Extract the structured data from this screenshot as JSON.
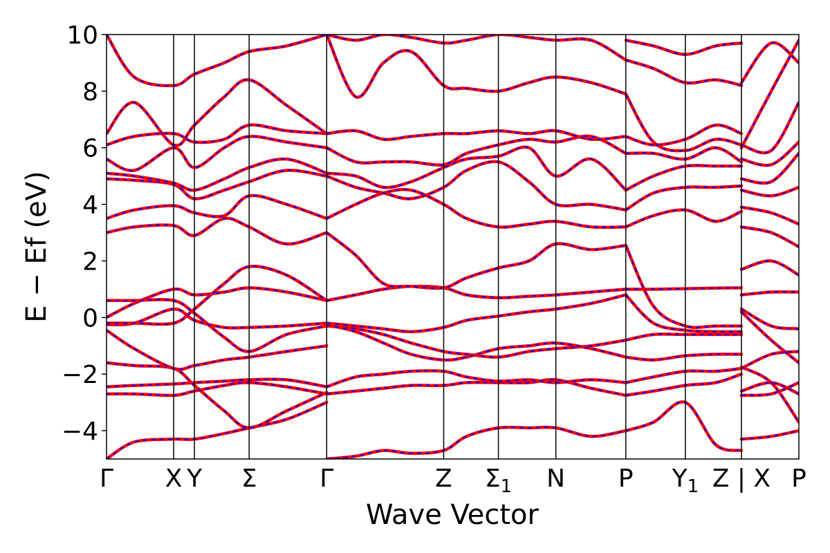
{
  "chart_data": {
    "type": "line",
    "xlabel": "Wave Vector",
    "ylabel": "E − Ef (eV)",
    "ylim": [
      -5,
      10
    ],
    "yticks": [
      -4,
      -2,
      0,
      2,
      4,
      6,
      8,
      10
    ],
    "ytick_labels": [
      "−4",
      "−2",
      "0",
      "2",
      "4",
      "6",
      "8",
      "10"
    ],
    "xlim": [
      0,
      1
    ],
    "kpoints": [
      {
        "x": 0.0,
        "main": "Γ",
        "sub": ""
      },
      {
        "x": 0.097,
        "main": "X",
        "sub": ""
      },
      {
        "x": 0.127,
        "main": "Y",
        "sub": ""
      },
      {
        "x": 0.206,
        "main": "Σ",
        "sub": ""
      },
      {
        "x": 0.318,
        "main": "Γ",
        "sub": ""
      },
      {
        "x": 0.487,
        "main": "Z",
        "sub": ""
      },
      {
        "x": 0.566,
        "main": "Σ",
        "sub": "1"
      },
      {
        "x": 0.649,
        "main": "N",
        "sub": ""
      },
      {
        "x": 0.75,
        "main": "P",
        "sub": ""
      },
      {
        "x": 0.836,
        "main": "Y",
        "sub": "1"
      },
      {
        "x": 0.917,
        "main": "Z | X",
        "sub": ""
      },
      {
        "x": 1.0,
        "main": "P",
        "sub": ""
      }
    ],
    "grid": false,
    "style": {
      "line_color": "#ff0000",
      "overlay_color": "#0000ff"
    },
    "segments": [
      {
        "x": [
          0.0,
          0.04,
          0.097,
          0.127,
          0.17,
          0.206,
          0.26,
          0.318
        ],
        "bands": [
          [
            -5.0,
            -4.4,
            -4.3,
            -4.3,
            -4.1,
            -3.9,
            -3.6,
            -3.0
          ],
          [
            -2.7,
            -2.7,
            -2.75,
            -2.6,
            -2.4,
            -2.3,
            -2.45,
            -2.7
          ],
          [
            -2.45,
            -2.4,
            -2.35,
            -2.3,
            -2.25,
            -2.2,
            -2.2,
            -2.45
          ],
          [
            -1.6,
            -1.7,
            -1.8,
            -2.4,
            -3.3,
            -3.9,
            -3.3,
            -2.65
          ],
          [
            -0.45,
            -1.1,
            -1.8,
            -1.7,
            -1.5,
            -1.4,
            -1.2,
            -1.0
          ],
          [
            -0.25,
            -0.2,
            0.3,
            -0.1,
            -0.35,
            -0.35,
            -0.3,
            -0.2
          ],
          [
            0.0,
            0.5,
            1.0,
            0.8,
            0.9,
            1.05,
            0.9,
            0.6
          ],
          [
            0.6,
            0.6,
            0.6,
            0.15,
            -0.7,
            -1.2,
            -0.6,
            -0.3
          ],
          [
            -0.2,
            -0.2,
            -0.2,
            0.3,
            1.2,
            1.8,
            1.5,
            0.6
          ],
          [
            3.0,
            3.2,
            3.25,
            2.9,
            3.5,
            3.2,
            2.6,
            3.0
          ],
          [
            3.5,
            3.8,
            3.95,
            3.7,
            3.6,
            4.3,
            4.0,
            3.5
          ],
          [
            4.9,
            4.85,
            4.7,
            4.2,
            4.5,
            4.8,
            5.2,
            5.0
          ],
          [
            5.1,
            5.0,
            4.75,
            4.5,
            4.9,
            5.3,
            5.6,
            5.1
          ],
          [
            5.6,
            5.2,
            6.0,
            5.3,
            6.0,
            6.4,
            6.2,
            6.0
          ],
          [
            6.1,
            6.4,
            6.5,
            6.2,
            6.3,
            6.8,
            6.6,
            6.5
          ],
          [
            6.5,
            7.6,
            6.1,
            6.8,
            7.8,
            8.4,
            7.5,
            6.5
          ],
          [
            10.0,
            8.5,
            8.2,
            8.6,
            9.0,
            9.4,
            9.6,
            10.0
          ]
        ]
      },
      {
        "x": [
          0.318,
          0.36,
          0.4,
          0.44,
          0.487,
          0.52,
          0.566,
          0.61,
          0.649,
          0.7,
          0.75
        ],
        "bands": [
          [
            -5.0,
            -4.9,
            -4.7,
            -4.8,
            -4.7,
            -4.2,
            -3.9,
            -3.9,
            -3.9,
            -4.2,
            -4.0
          ],
          [
            -2.7,
            -2.6,
            -2.5,
            -2.4,
            -2.4,
            -2.3,
            -2.3,
            -2.3,
            -2.2,
            -2.5,
            -2.75
          ],
          [
            -2.45,
            -2.1,
            -2.0,
            -1.9,
            -1.9,
            -2.1,
            -2.25,
            -2.2,
            -2.3,
            -2.2,
            -2.3
          ],
          [
            -0.3,
            -0.4,
            -0.6,
            -0.9,
            -1.2,
            -1.3,
            -1.4,
            -1.2,
            -1.1,
            -1.0,
            -0.8
          ],
          [
            -0.25,
            -0.5,
            -0.9,
            -1.3,
            -1.5,
            -1.4,
            -1.1,
            -1.0,
            -0.9,
            -1.1,
            -1.4
          ],
          [
            -0.2,
            -0.3,
            -0.4,
            -0.5,
            -0.35,
            -0.1,
            0.05,
            0.2,
            0.3,
            0.5,
            0.8
          ],
          [
            0.6,
            0.8,
            1.0,
            1.1,
            1.05,
            0.8,
            0.7,
            0.75,
            0.8,
            0.9,
            1.0
          ],
          [
            3.0,
            2.2,
            1.2,
            1.1,
            1.05,
            1.4,
            1.75,
            2.0,
            2.6,
            2.4,
            2.55
          ],
          [
            3.5,
            4.0,
            4.4,
            4.5,
            4.0,
            3.5,
            3.2,
            3.3,
            3.4,
            3.2,
            3.2
          ],
          [
            5.0,
            4.6,
            4.4,
            4.2,
            4.6,
            5.2,
            5.5,
            4.8,
            4.0,
            4.0,
            3.8
          ],
          [
            5.1,
            5.0,
            4.6,
            4.8,
            5.3,
            5.6,
            5.7,
            6.0,
            5.0,
            5.6,
            4.5
          ],
          [
            6.0,
            5.5,
            5.5,
            5.5,
            5.4,
            5.8,
            6.1,
            6.3,
            6.2,
            6.4,
            5.8
          ],
          [
            6.5,
            6.6,
            6.3,
            6.4,
            6.5,
            6.5,
            6.6,
            6.5,
            6.6,
            6.3,
            6.4
          ],
          [
            10.0,
            7.8,
            9.0,
            9.4,
            8.2,
            8.1,
            8.0,
            8.3,
            8.5,
            8.3,
            7.9
          ],
          [
            10.0,
            9.8,
            10.0,
            9.9,
            9.7,
            9.8,
            10.0,
            9.9,
            9.8,
            9.8,
            9.1
          ]
        ]
      },
      {
        "x": [
          0.75,
          0.79,
          0.836,
          0.88,
          0.917
        ],
        "bands": [
          [
            -4.0,
            -3.7,
            -3.0,
            -4.5,
            -4.7
          ],
          [
            -2.75,
            -2.6,
            -2.4,
            -2.3,
            -2.0
          ],
          [
            -2.3,
            -2.1,
            -1.9,
            -1.9,
            -1.8
          ],
          [
            -1.4,
            -1.5,
            -1.35,
            -1.3,
            -1.3
          ],
          [
            -0.8,
            -0.6,
            -0.6,
            -0.6,
            -0.6
          ],
          [
            0.8,
            -0.2,
            -0.45,
            -0.5,
            -0.5
          ],
          [
            1.0,
            1.0,
            1.02,
            1.04,
            1.05
          ],
          [
            2.55,
            0.4,
            -0.3,
            -0.3,
            -0.3
          ],
          [
            3.2,
            3.6,
            3.8,
            3.4,
            3.75
          ],
          [
            3.8,
            4.4,
            4.6,
            4.6,
            4.65
          ],
          [
            4.5,
            5.0,
            5.35,
            5.35,
            5.35
          ],
          [
            5.8,
            5.8,
            5.6,
            6.0,
            5.5
          ],
          [
            6.4,
            6.1,
            6.3,
            6.8,
            6.5
          ],
          [
            7.9,
            6.2,
            5.9,
            6.3,
            6.1
          ],
          [
            9.1,
            8.8,
            8.3,
            8.4,
            8.2
          ],
          [
            9.8,
            9.6,
            9.3,
            9.6,
            9.7
          ]
        ]
      },
      {
        "x": [
          0.917,
          0.96,
          1.0
        ],
        "bands": [
          [
            -4.3,
            -4.2,
            -4.0
          ],
          [
            -2.75,
            -2.7,
            -2.3
          ],
          [
            -2.6,
            -2.3,
            -2.7
          ],
          [
            -1.8,
            -1.3,
            -1.2
          ],
          [
            -1.75,
            -2.3,
            -3.7
          ],
          [
            0.3,
            -0.3,
            -0.4
          ],
          [
            0.2,
            -0.8,
            -1.6
          ],
          [
            1.7,
            2.0,
            1.5
          ],
          [
            0.8,
            0.9,
            0.9
          ],
          [
            3.2,
            3.0,
            2.5
          ],
          [
            3.9,
            3.7,
            3.3
          ],
          [
            4.5,
            4.3,
            4.6
          ],
          [
            4.9,
            4.8,
            5.8
          ],
          [
            5.6,
            5.4,
            6.2
          ],
          [
            6.1,
            5.9,
            7.6
          ],
          [
            6.0,
            8.0,
            9.8
          ],
          [
            8.3,
            9.7,
            9.0
          ]
        ]
      }
    ]
  }
}
